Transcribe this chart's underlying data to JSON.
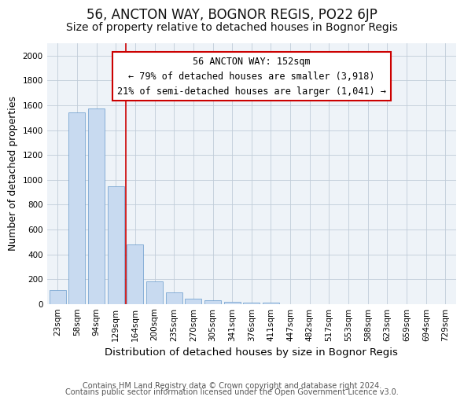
{
  "title": "56, ANCTON WAY, BOGNOR REGIS, PO22 6JP",
  "subtitle": "Size of property relative to detached houses in Bognor Regis",
  "xlabel": "Distribution of detached houses by size in Bognor Regis",
  "ylabel": "Number of detached properties",
  "categories": [
    "23sqm",
    "58sqm",
    "94sqm",
    "129sqm",
    "164sqm",
    "200sqm",
    "235sqm",
    "270sqm",
    "305sqm",
    "341sqm",
    "376sqm",
    "411sqm",
    "447sqm",
    "482sqm",
    "517sqm",
    "553sqm",
    "588sqm",
    "623sqm",
    "659sqm",
    "694sqm",
    "729sqm"
  ],
  "values": [
    110,
    1540,
    1575,
    950,
    480,
    180,
    95,
    45,
    30,
    18,
    12,
    8,
    0,
    0,
    0,
    0,
    0,
    0,
    0,
    0,
    0
  ],
  "bar_color": "#c8daf0",
  "bar_edge_color": "#6699cc",
  "vline_x_pos": 3.5,
  "vline_color": "#cc0000",
  "annotation_line1": "56 ANCTON WAY: 152sqm",
  "annotation_line2": "← 79% of detached houses are smaller (3,918)",
  "annotation_line3": "21% of semi-detached houses are larger (1,041) →",
  "annotation_box_color": "#cc0000",
  "ylim": [
    0,
    2100
  ],
  "yticks": [
    0,
    200,
    400,
    600,
    800,
    1000,
    1200,
    1400,
    1600,
    1800,
    2000
  ],
  "footer_line1": "Contains HM Land Registry data © Crown copyright and database right 2024.",
  "footer_line2": "Contains public sector information licensed under the Open Government Licence v3.0.",
  "bg_color": "#eef3f8",
  "grid_color": "#c0ccd8",
  "title_fontsize": 12,
  "subtitle_fontsize": 10,
  "tick_fontsize": 7.5,
  "ylabel_fontsize": 9,
  "xlabel_fontsize": 9.5,
  "footer_fontsize": 7,
  "annot_fontsize": 8.5
}
